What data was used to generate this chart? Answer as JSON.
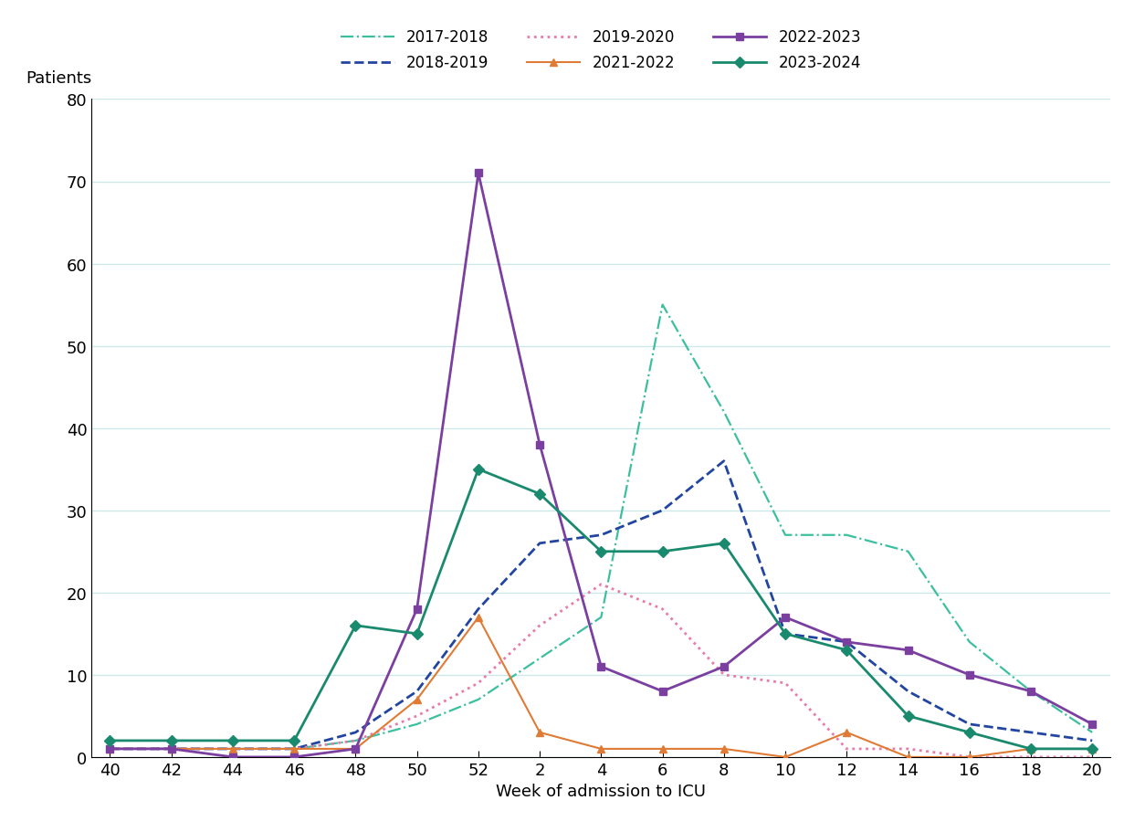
{
  "x_labels": [
    "40",
    "42",
    "44",
    "46",
    "48",
    "50",
    "52",
    "2",
    "4",
    "6",
    "8",
    "10",
    "12",
    "14",
    "16",
    "18",
    "20"
  ],
  "x_positions": [
    0,
    1,
    2,
    3,
    4,
    5,
    6,
    7,
    8,
    9,
    10,
    11,
    12,
    13,
    14,
    15,
    16
  ],
  "series": [
    {
      "label": "2017-2018",
      "color": "#3cbf9f",
      "linestyle": "dashdot",
      "marker": null,
      "linewidth": 1.6,
      "values": [
        1,
        1,
        1,
        1,
        2,
        4,
        7,
        12,
        17,
        55,
        42,
        27,
        27,
        25,
        14,
        8,
        3
      ]
    },
    {
      "label": "2018-2019",
      "color": "#2245a0",
      "linestyle": "dashed",
      "marker": null,
      "linewidth": 2.0,
      "values": [
        1,
        1,
        1,
        1,
        3,
        8,
        18,
        26,
        27,
        30,
        36,
        15,
        14,
        8,
        4,
        3,
        2
      ]
    },
    {
      "label": "2019-2020",
      "color": "#e87baa",
      "linestyle": "dotted",
      "marker": null,
      "linewidth": 2.0,
      "values": [
        1,
        1,
        1,
        1,
        2,
        5,
        9,
        16,
        21,
        18,
        10,
        9,
        1,
        1,
        0,
        0,
        0
      ]
    },
    {
      "label": "2021-2022",
      "color": "#e07b35",
      "linestyle": "solid",
      "marker": "^",
      "markersize": 6,
      "linewidth": 1.5,
      "values": [
        1,
        1,
        1,
        1,
        1,
        7,
        17,
        3,
        1,
        1,
        1,
        0,
        3,
        0,
        0,
        1,
        1
      ]
    },
    {
      "label": "2022-2023",
      "color": "#7b3fa0",
      "linestyle": "solid",
      "marker": "s",
      "markersize": 6,
      "linewidth": 2.0,
      "values": [
        1,
        1,
        0,
        0,
        1,
        18,
        71,
        38,
        11,
        8,
        11,
        17,
        14,
        13,
        10,
        8,
        4
      ]
    },
    {
      "label": "2023-2024",
      "color": "#1a8a6e",
      "linestyle": "solid",
      "marker": "D",
      "markersize": 6,
      "linewidth": 2.0,
      "values": [
        2,
        2,
        2,
        2,
        16,
        15,
        35,
        32,
        25,
        25,
        26,
        15,
        13,
        5,
        3,
        1,
        1
      ]
    }
  ],
  "legend_order": [
    [
      "2017-2018",
      "2018-2019",
      "2019-2020"
    ],
    [
      "2021-2022",
      "2022-2023",
      "2023-2024"
    ]
  ],
  "ylabel": "Patients",
  "xlabel": "Week of admission to ICU",
  "ylim": [
    0,
    80
  ],
  "yticks": [
    0,
    10,
    20,
    30,
    40,
    50,
    60,
    70,
    80
  ],
  "axis_fontsize": 13,
  "tick_fontsize": 13,
  "legend_fontsize": 12,
  "background_color": "#ffffff",
  "grid_color": "#cce8e8",
  "figsize": [
    12.54,
    9.12
  ]
}
